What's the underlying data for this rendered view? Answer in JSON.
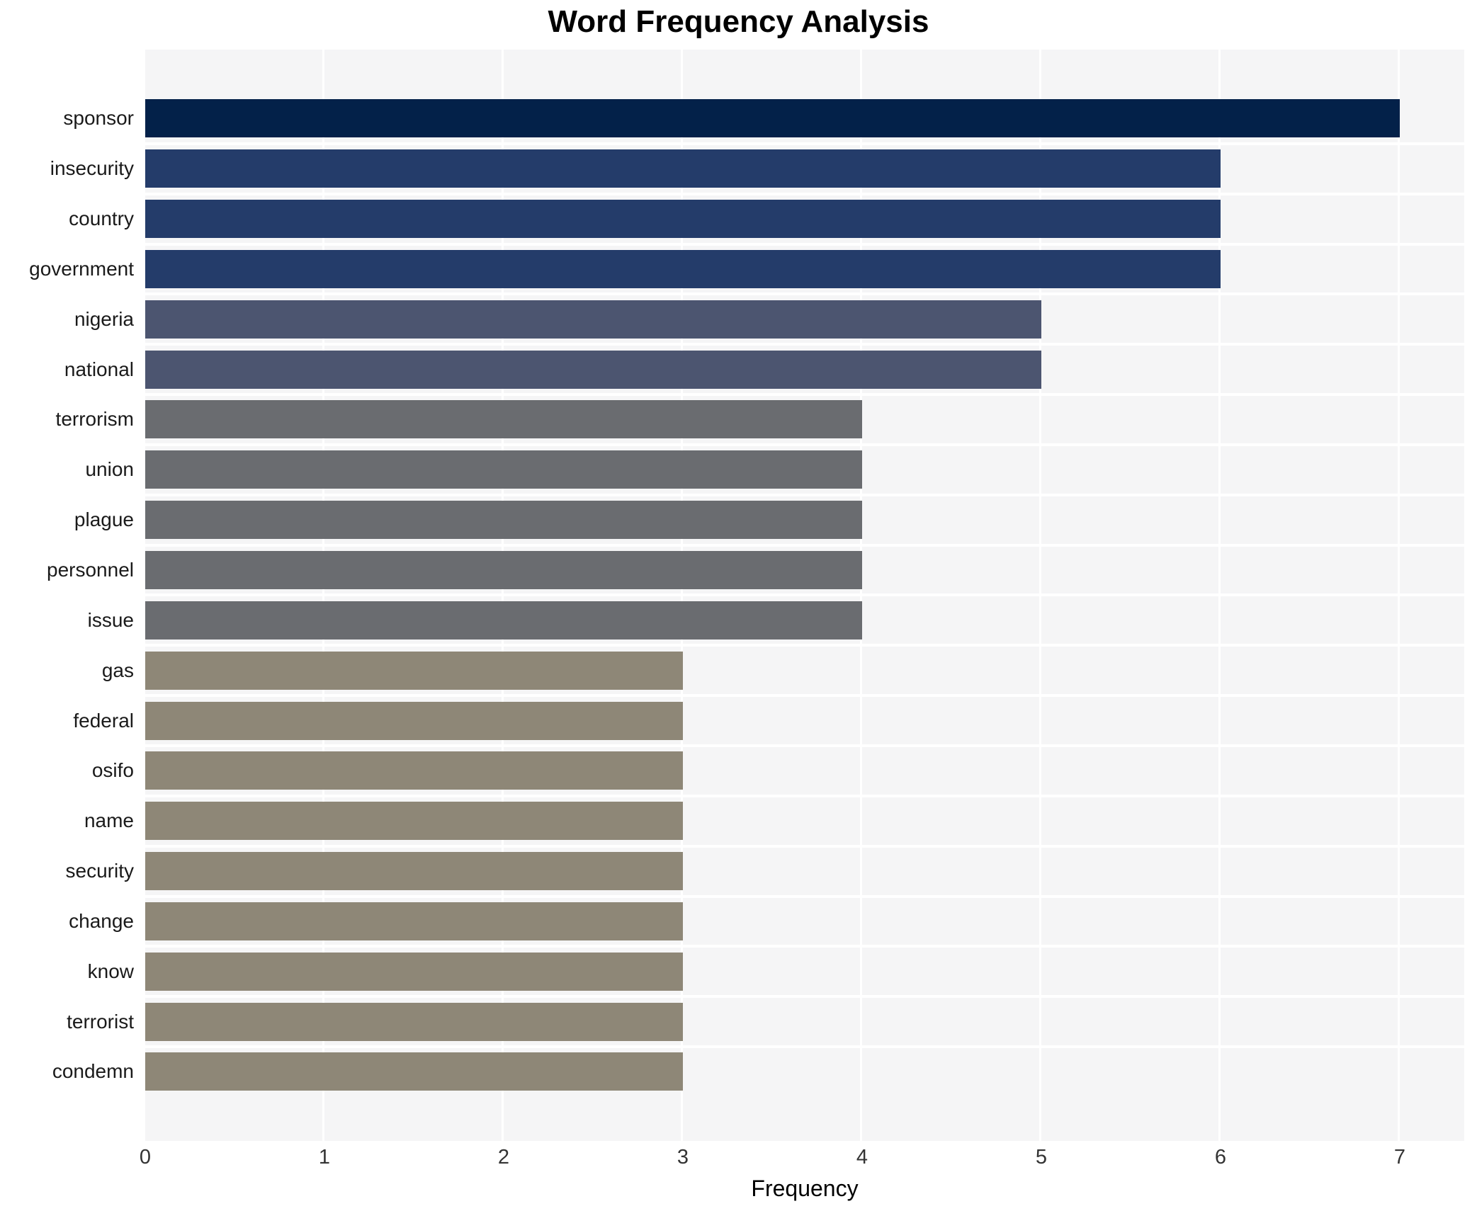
{
  "chart_data": {
    "type": "bar",
    "orientation": "horizontal",
    "title": "Word Frequency Analysis",
    "xlabel": "Frequency",
    "ylabel": "",
    "categories": [
      "sponsor",
      "insecurity",
      "country",
      "government",
      "nigeria",
      "national",
      "terrorism",
      "union",
      "plague",
      "personnel",
      "issue",
      "gas",
      "federal",
      "osifo",
      "name",
      "security",
      "change",
      "know",
      "terrorist",
      "condemn"
    ],
    "values": [
      7,
      6,
      6,
      6,
      5,
      5,
      4,
      4,
      4,
      4,
      4,
      3,
      3,
      3,
      3,
      3,
      3,
      3,
      3,
      3
    ],
    "bar_colors": [
      "#032149",
      "#243c6a",
      "#243c6a",
      "#243c6a",
      "#4c5570",
      "#4c5570",
      "#6a6c70",
      "#6a6c70",
      "#6a6c70",
      "#6a6c70",
      "#6a6c70",
      "#8e8777",
      "#8e8777",
      "#8e8777",
      "#8e8777",
      "#8e8777",
      "#8e8777",
      "#8e8777",
      "#8e8777",
      "#8e8777"
    ],
    "xticks": [
      0,
      1,
      2,
      3,
      4,
      5,
      6,
      7
    ],
    "xlim": [
      0,
      7.36
    ],
    "grid": true,
    "legend": "none",
    "panel_background": "#f5f5f6",
    "gridline_color": "#ffffff"
  }
}
